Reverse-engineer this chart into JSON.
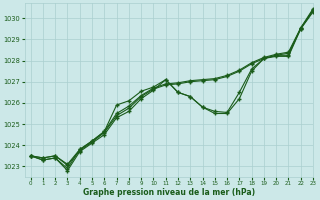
{
  "title": "Graphe pression niveau de la mer (hPa)",
  "bg_color": "#cce8e8",
  "grid_color": "#aacfcf",
  "line_color": "#1a5c1a",
  "xlim": [
    -0.5,
    23
  ],
  "ylim": [
    1022.5,
    1030.7
  ],
  "yticks": [
    1023,
    1024,
    1025,
    1026,
    1027,
    1028,
    1029,
    1030
  ],
  "xticks": [
    0,
    1,
    2,
    3,
    4,
    5,
    6,
    7,
    8,
    9,
    10,
    11,
    12,
    13,
    14,
    15,
    16,
    17,
    18,
    19,
    20,
    21,
    22,
    23
  ],
  "s1": [
    1023.5,
    1023.3,
    1023.4,
    1022.8,
    1023.7,
    1024.1,
    1024.5,
    1025.3,
    1025.6,
    1026.2,
    1026.6,
    1027.1,
    1026.5,
    1026.3,
    1025.8,
    1025.5,
    1025.5,
    1026.2,
    1027.5,
    1028.1,
    1028.2,
    1028.2,
    1029.5,
    1030.3
  ],
  "s2": [
    1023.5,
    1023.3,
    1023.4,
    1022.9,
    1023.8,
    1024.2,
    1024.65,
    1025.9,
    1026.1,
    1026.55,
    1026.75,
    1027.1,
    1026.5,
    1026.3,
    1025.8,
    1025.6,
    1025.55,
    1026.5,
    1027.6,
    1028.1,
    1028.25,
    1028.25,
    1029.55,
    1030.35
  ],
  "s3": [
    1023.5,
    1023.4,
    1023.5,
    1023.05,
    1023.75,
    1024.15,
    1024.6,
    1025.4,
    1025.75,
    1026.3,
    1026.65,
    1026.85,
    1026.9,
    1027.0,
    1027.05,
    1027.1,
    1027.25,
    1027.5,
    1027.85,
    1028.1,
    1028.25,
    1028.35,
    1029.5,
    1030.4
  ],
  "s4": [
    1023.5,
    1023.4,
    1023.5,
    1023.1,
    1023.8,
    1024.2,
    1024.65,
    1025.5,
    1025.85,
    1026.35,
    1026.7,
    1026.9,
    1026.95,
    1027.05,
    1027.1,
    1027.15,
    1027.3,
    1027.55,
    1027.9,
    1028.15,
    1028.3,
    1028.4,
    1029.55,
    1030.45
  ]
}
